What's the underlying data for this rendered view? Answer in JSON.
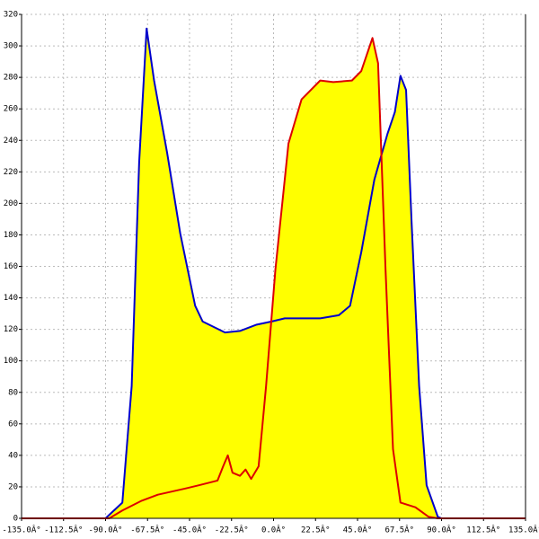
{
  "chart_data": {
    "type": "area-line",
    "xlim": [
      -135,
      135
    ],
    "xticks": [
      {
        "value": -135,
        "label": "-135.0Â°"
      },
      {
        "value": -112.5,
        "label": "-112.5Â°"
      },
      {
        "value": -90,
        "label": "-90.0Â°"
      },
      {
        "value": -67.5,
        "label": "-67.5Â°"
      },
      {
        "value": -45,
        "label": "-45.0Â°"
      },
      {
        "value": -22.5,
        "label": "-22.5Â°"
      },
      {
        "value": 0,
        "label": "0.0Â°"
      },
      {
        "value": 22.5,
        "label": "22.5Â°"
      },
      {
        "value": 45,
        "label": "45.0Â°"
      },
      {
        "value": 67.5,
        "label": "67.5Â°"
      },
      {
        "value": 90,
        "label": "90.0Â°"
      },
      {
        "value": 112.5,
        "label": "112.5Â°"
      },
      {
        "value": 135,
        "label": "135.0Â°"
      }
    ],
    "ylim": [
      0,
      320
    ],
    "yticks": [
      0,
      20,
      40,
      60,
      80,
      100,
      120,
      140,
      160,
      180,
      200,
      220,
      240,
      260,
      280,
      300,
      320
    ],
    "grid": true,
    "fill": "#ffff00",
    "series": [
      {
        "color": "#0000cc",
        "x": [
          -90,
          -81,
          -76,
          -72,
          -68,
          -64,
          -57,
          -50,
          -42,
          -38,
          -26,
          -18,
          -9,
          -1,
          6,
          25,
          35,
          41,
          47,
          54,
          61,
          65,
          68,
          71,
          74,
          78,
          82,
          88,
          90
        ],
        "values": [
          0,
          10,
          84,
          226,
          311,
          278,
          232,
          181,
          135,
          125,
          118,
          119,
          123,
          125,
          127,
          127,
          129,
          135,
          169,
          215,
          244,
          258,
          281,
          272,
          187,
          84,
          21,
          1,
          0
        ]
      },
      {
        "color": "#dd0000",
        "x": [
          -135,
          -90,
          -88,
          -81,
          -71,
          -62,
          -47,
          -40,
          -30,
          -27,
          -24.5,
          -22,
          -18,
          -15,
          -12,
          -8,
          -4,
          1,
          8,
          15,
          25,
          32,
          42,
          47,
          53,
          56,
          60,
          64,
          68,
          76,
          83,
          88,
          135
        ],
        "values": [
          0,
          0,
          0,
          5,
          11,
          15,
          19,
          21,
          24,
          33,
          40,
          29,
          27,
          31,
          25,
          33,
          84,
          158,
          238,
          266,
          278,
          277,
          278,
          284,
          305,
          289,
          158,
          44,
          10,
          7,
          1,
          0,
          0
        ]
      }
    ]
  }
}
